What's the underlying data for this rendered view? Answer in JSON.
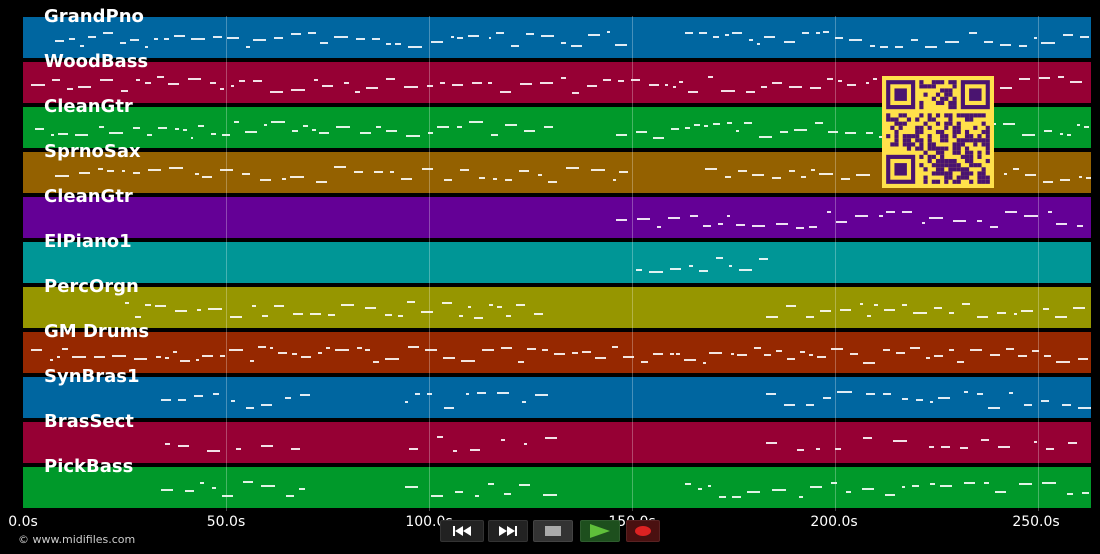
{
  "app": {
    "copyright": "© www.midifiles.com",
    "colors": {
      "background": "#000000",
      "qr_fg": "#4a1470",
      "qr_bg": "#ffe14b"
    }
  },
  "tracks": [
    {
      "name": "GrandPno",
      "color": "#0066a0"
    },
    {
      "name": "WoodBass",
      "color": "#960034"
    },
    {
      "name": "CleanGtr",
      "color": "#00992a"
    },
    {
      "name": "SprnoSax",
      "color": "#946100"
    },
    {
      "name": "CleanGtr",
      "color": "#640096"
    },
    {
      "name": "ElPiano1",
      "color": "#009696"
    },
    {
      "name": "PercOrgn",
      "color": "#969600"
    },
    {
      "name": "GM Drums",
      "color": "#962800"
    },
    {
      "name": "SynBras1",
      "color": "#0066a0"
    },
    {
      "name": "BrasSect",
      "color": "#960034"
    },
    {
      "name": "PickBass",
      "color": "#00992a"
    }
  ],
  "timeline": {
    "unit": "s",
    "range": [
      0,
      263
    ],
    "ticks": [
      "0.0s",
      "50.0s",
      "100.0s",
      "150.0s",
      "200.0s",
      "250.0s"
    ]
  },
  "transport": {
    "buttons": [
      {
        "name": "rewind-button",
        "icon": "rewind-icon"
      },
      {
        "name": "fast-forward-button",
        "icon": "fast-forward-icon"
      },
      {
        "name": "stop-button",
        "icon": "stop-icon"
      },
      {
        "name": "play-button",
        "icon": "play-icon"
      },
      {
        "name": "record-button",
        "icon": "record-icon"
      }
    ]
  }
}
